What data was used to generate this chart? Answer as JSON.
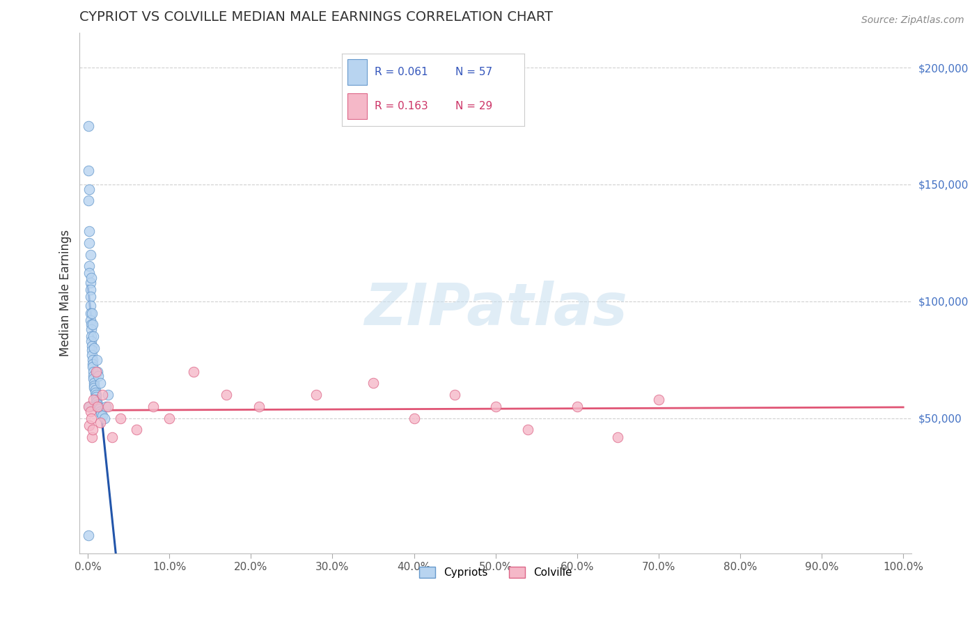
{
  "title": "CYPRIOT VS COLVILLE MEDIAN MALE EARNINGS CORRELATION CHART",
  "source_text": "Source: ZipAtlas.com",
  "ylabel": "Median Male Earnings",
  "xlim": [
    -0.01,
    1.01
  ],
  "ylim": [
    -8000,
    215000
  ],
  "yticks": [
    50000,
    100000,
    150000,
    200000
  ],
  "ytick_labels": [
    "$50,000",
    "$100,000",
    "$150,000",
    "$200,000"
  ],
  "xticks": [
    0.0,
    0.1,
    0.2,
    0.3,
    0.4,
    0.5,
    0.6,
    0.7,
    0.8,
    0.9,
    1.0
  ],
  "xtick_labels": [
    "0.0%",
    "10.0%",
    "20.0%",
    "30.0%",
    "40.0%",
    "50.0%",
    "60.0%",
    "70.0%",
    "80.0%",
    "90.0%",
    "100.0%"
  ],
  "background_color": "#ffffff",
  "grid_color": "#d0d0d0",
  "cypriot_fill": "#b8d4f0",
  "cypriot_edge": "#6699cc",
  "colville_fill": "#f5b8c8",
  "colville_edge": "#dd6688",
  "cypriot_R": 0.061,
  "cypriot_N": 57,
  "colville_R": 0.163,
  "colville_N": 29,
  "title_color": "#333333",
  "ylabel_color": "#333333",
  "tick_color_y_right": "#4472c4",
  "tick_color_x": "#555555",
  "legend_color_cypriot": "#3355bb",
  "legend_color_colville": "#cc3366",
  "cypriot_trend_dashed_color": "#88aacc",
  "cypriot_trend_solid_color": "#2255aa",
  "colville_trend_color": "#e05575",
  "watermark_color": "#c8dff0",
  "cypriot_x": [
    0.001,
    0.001,
    0.001,
    0.002,
    0.002,
    0.002,
    0.002,
    0.002,
    0.003,
    0.003,
    0.003,
    0.003,
    0.003,
    0.003,
    0.003,
    0.004,
    0.004,
    0.004,
    0.004,
    0.004,
    0.005,
    0.005,
    0.005,
    0.005,
    0.006,
    0.006,
    0.006,
    0.006,
    0.007,
    0.007,
    0.007,
    0.007,
    0.008,
    0.008,
    0.008,
    0.008,
    0.009,
    0.009,
    0.01,
    0.01,
    0.01,
    0.011,
    0.011,
    0.012,
    0.012,
    0.013,
    0.013,
    0.014,
    0.015,
    0.015,
    0.016,
    0.018,
    0.02,
    0.022,
    0.025,
    0.002,
    0.001
  ],
  "cypriot_y": [
    175000,
    156000,
    143000,
    148000,
    130000,
    125000,
    115000,
    112000,
    108000,
    105000,
    102000,
    98000,
    95000,
    92000,
    120000,
    90000,
    88000,
    85000,
    83000,
    110000,
    81000,
    79000,
    77000,
    95000,
    75000,
    73000,
    72000,
    90000,
    70000,
    68000,
    67000,
    85000,
    65000,
    64000,
    63000,
    80000,
    62000,
    61000,
    60000,
    59000,
    58000,
    57000,
    75000,
    56000,
    70000,
    55000,
    68000,
    54000,
    53000,
    65000,
    52000,
    51000,
    50000,
    55000,
    60000,
    55000,
    0
  ],
  "colville_x": [
    0.001,
    0.002,
    0.003,
    0.004,
    0.005,
    0.006,
    0.007,
    0.01,
    0.012,
    0.015,
    0.018,
    0.025,
    0.03,
    0.04,
    0.06,
    0.08,
    0.1,
    0.13,
    0.17,
    0.21,
    0.28,
    0.35,
    0.4,
    0.45,
    0.5,
    0.54,
    0.6,
    0.65,
    0.7
  ],
  "colville_y": [
    55000,
    47000,
    53000,
    50000,
    42000,
    45000,
    58000,
    70000,
    55000,
    48000,
    60000,
    55000,
    42000,
    50000,
    45000,
    55000,
    50000,
    70000,
    60000,
    55000,
    60000,
    65000,
    50000,
    60000,
    55000,
    45000,
    55000,
    42000,
    58000
  ]
}
